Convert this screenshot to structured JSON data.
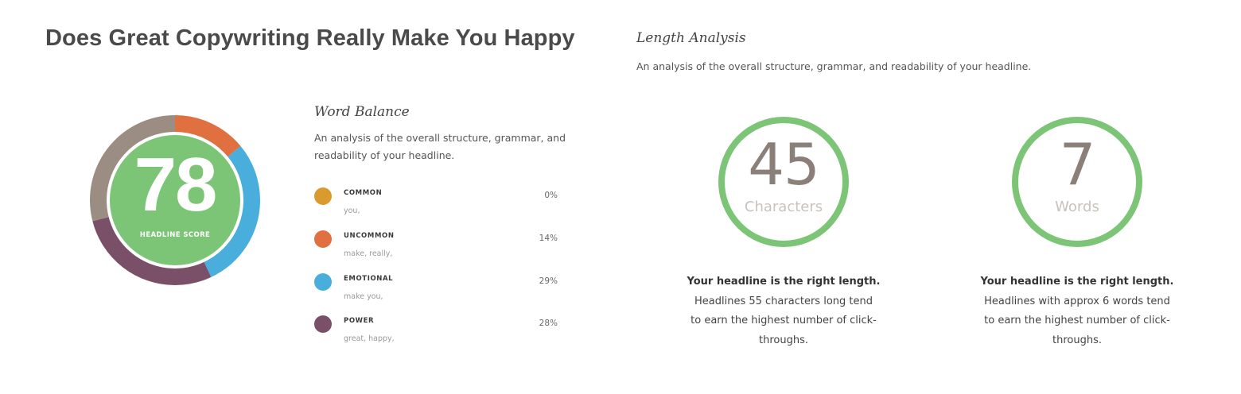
{
  "headline": "Does Great Copywriting Really Make You Happy",
  "score": {
    "value": "78",
    "label": "HEADLINE SCORE",
    "fill_color": "#7cc576",
    "segments": [
      {
        "name": "uncommon",
        "fraction": 0.14,
        "color": "#e0703f"
      },
      {
        "name": "emotional",
        "fraction": 0.29,
        "color": "#4aaedc"
      },
      {
        "name": "power",
        "fraction": 0.28,
        "color": "#7a5068"
      },
      {
        "name": "remainder",
        "fraction": 0.29,
        "color": "#9b8d82"
      }
    ]
  },
  "word_balance": {
    "title": "Word Balance",
    "description_line1": "An analysis of the overall structure, grammar, and",
    "description_line2": "readability of your headline.",
    "items": [
      {
        "name": "COMMON",
        "words": "you,",
        "percent": "0%",
        "color": "#d99b2e"
      },
      {
        "name": "UNCOMMON",
        "words": "make, really,",
        "percent": "14%",
        "color": "#e0703f"
      },
      {
        "name": "EMOTIONAL",
        "words": "make you,",
        "percent": "29%",
        "color": "#4aaedc"
      },
      {
        "name": "POWER",
        "words": "great, happy,",
        "percent": "28%",
        "color": "#7a5068"
      }
    ]
  },
  "length_analysis": {
    "title": "Length Analysis",
    "description": "An analysis of the overall structure, grammar, and readability of your headline.",
    "characters": {
      "value": "45",
      "unit": "Characters",
      "ring_color": "#7cc576",
      "gray_fraction": 0.05,
      "gray_color": "#9b8d82",
      "verdict_title": "Your headline is the right length.",
      "verdict_line1": "Headlines 55 characters long tend",
      "verdict_line2": "to earn the highest number of click-",
      "verdict_line3": "throughs."
    },
    "words": {
      "value": "7",
      "unit": "Words",
      "ring_color": "#7cc576",
      "verdict_title": "Your headline is the right length.",
      "verdict_line1": "Headlines with approx 6 words tend",
      "verdict_line2": "to earn the highest number of click-",
      "verdict_line3": "throughs."
    }
  }
}
